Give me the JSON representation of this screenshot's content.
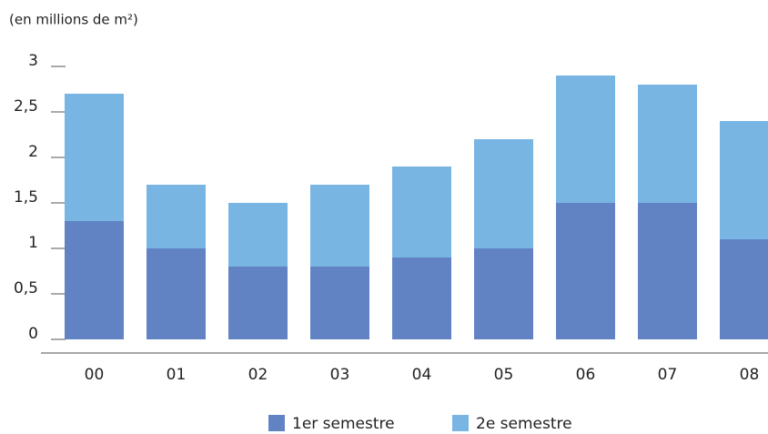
{
  "chart_data": {
    "type": "stacked_bar",
    "subtitle": "(en millions de m²)",
    "categories": [
      "00",
      "01",
      "02",
      "03",
      "04",
      "05",
      "06",
      "07",
      "08"
    ],
    "series": [
      {
        "name": "1er semestre",
        "color": "#6183c3",
        "values": [
          1.3,
          1.0,
          0.8,
          0.8,
          0.9,
          1.0,
          1.5,
          1.5,
          1.1
        ]
      },
      {
        "name": "2e semestre",
        "color": "#78b5e3",
        "values": [
          1.4,
          0.7,
          0.7,
          0.9,
          1.0,
          1.2,
          1.4,
          1.3,
          1.3
        ]
      }
    ],
    "ylim": [
      0,
      3
    ],
    "yticks": [
      0,
      {
        "value": 0.5,
        "label": "0,5"
      },
      1,
      {
        "value": 1.5,
        "label": "1,5"
      },
      2,
      {
        "value": 2.5,
        "label": "2,5"
      },
      3
    ],
    "legend": "bottom"
  }
}
